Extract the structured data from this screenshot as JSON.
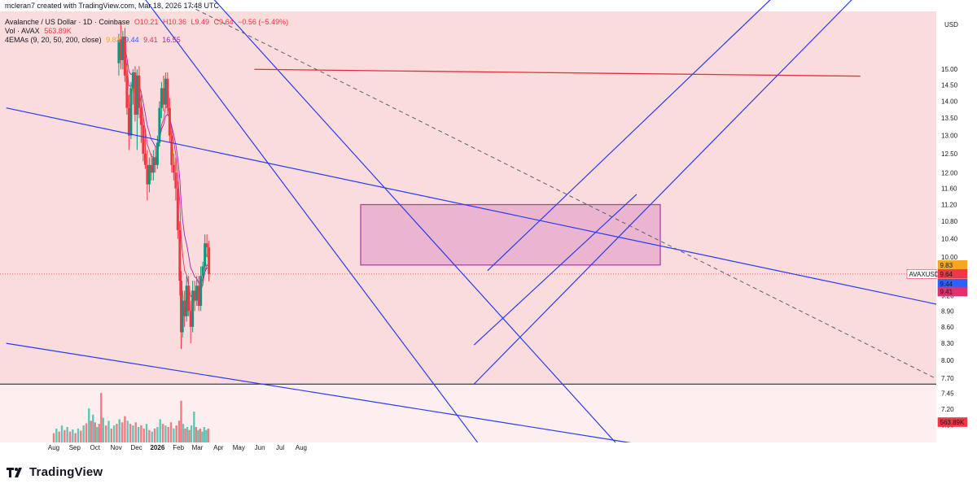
{
  "header": {
    "credit": "mcleran7 created with TradingView.com, Mar 18, 2026 17:48 UTC",
    "symbol_line": "Avalanche / US Dollar · 1D · Coinbase",
    "ohlc": {
      "o": "O10.21",
      "h": "H10.36",
      "l": "L9.49",
      "c": "C9.64",
      "chg": "−0.56 (−5.49%)"
    },
    "volume": {
      "label": "Vol · AVAX",
      "value": "563.89K"
    },
    "emas": {
      "label": "4EMAs (9, 20, 50, 200, close)",
      "v1": "9.83",
      "v2": "9.44",
      "v3": "9.41",
      "v4": "16.55"
    }
  },
  "branding": {
    "name": "TradingView"
  },
  "colors": {
    "background_tint": "#fadcdc",
    "up": "#089981",
    "down": "#f23645",
    "trendline": "#2a3bf0",
    "resistance": "#e0303a",
    "zone_fill": "#e6a8cc",
    "zone_border": "#b040a8",
    "ema9": "#f6a623",
    "ema20": "#2962ff",
    "ema50": "#e03070",
    "ema200": "#9c27b0"
  },
  "chart_data": {
    "type": "candlestick",
    "symbol": "AVAXUSD",
    "currency": "USD",
    "y_scale": "log",
    "ylim": [
      6.7,
      17.0
    ],
    "y_ticks": [
      "15.00",
      "14.50",
      "14.00",
      "13.50",
      "13.00",
      "12.50",
      "12.00",
      "11.60",
      "11.20",
      "10.80",
      "10.40",
      "10.00",
      "9.60",
      "9.20",
      "8.90",
      "8.60",
      "8.30",
      "8.00",
      "7.70",
      "7.45",
      "7.20",
      "6.96"
    ],
    "x_ticks": [
      "Aug",
      "Sep",
      "Oct",
      "Nov",
      "Dec",
      "2026",
      "Feb",
      "Mar",
      "Apr",
      "May",
      "Jun",
      "Jul",
      "Aug"
    ],
    "price_labels": [
      {
        "label": "9.83",
        "color": "#f6a623"
      },
      {
        "label": "AVAXUSD",
        "color": "#f23645"
      },
      {
        "label": "9.64",
        "color": "#f23645"
      },
      {
        "label": "9.44",
        "color": "#2962ff"
      },
      {
        "label": "9.41",
        "color": "#e03070"
      },
      {
        "label": "563.89K",
        "color": "#f23645"
      }
    ],
    "last_price": 9.64,
    "candles": [
      {
        "d": "2025-11-05",
        "o": 15.2,
        "h": 16.2,
        "l": 14.8,
        "c": 16.0
      },
      {
        "d": "2025-11-08",
        "o": 16.0,
        "h": 16.6,
        "l": 15.0,
        "c": 15.3
      },
      {
        "d": "2025-11-11",
        "o": 15.3,
        "h": 16.3,
        "l": 15.0,
        "c": 16.1
      },
      {
        "d": "2025-11-14",
        "o": 16.1,
        "h": 16.4,
        "l": 14.6,
        "c": 14.8
      },
      {
        "d": "2025-11-17",
        "o": 14.8,
        "h": 15.2,
        "l": 13.6,
        "c": 13.8
      },
      {
        "d": "2025-11-20",
        "o": 13.8,
        "h": 14.2,
        "l": 12.6,
        "c": 13.0
      },
      {
        "d": "2025-11-23",
        "o": 13.0,
        "h": 14.6,
        "l": 12.9,
        "c": 14.4
      },
      {
        "d": "2025-11-26",
        "o": 14.4,
        "h": 15.0,
        "l": 13.9,
        "c": 14.9
      },
      {
        "d": "2025-11-29",
        "o": 14.9,
        "h": 15.1,
        "l": 13.4,
        "c": 13.6
      },
      {
        "d": "2025-12-02",
        "o": 13.6,
        "h": 15.0,
        "l": 12.6,
        "c": 14.8
      },
      {
        "d": "2025-12-05",
        "o": 14.8,
        "h": 15.1,
        "l": 13.5,
        "c": 13.8
      },
      {
        "d": "2025-12-08",
        "o": 13.8,
        "h": 14.2,
        "l": 12.8,
        "c": 13.3
      },
      {
        "d": "2025-12-11",
        "o": 13.3,
        "h": 13.6,
        "l": 12.3,
        "c": 12.5
      },
      {
        "d": "2025-12-14",
        "o": 12.5,
        "h": 13.2,
        "l": 12.1,
        "c": 12.2
      },
      {
        "d": "2025-12-17",
        "o": 12.2,
        "h": 12.6,
        "l": 11.3,
        "c": 11.7
      },
      {
        "d": "2025-12-20",
        "o": 11.7,
        "h": 12.4,
        "l": 11.5,
        "c": 12.2
      },
      {
        "d": "2025-12-23",
        "o": 12.2,
        "h": 12.5,
        "l": 11.8,
        "c": 12.0
      },
      {
        "d": "2025-12-26",
        "o": 12.0,
        "h": 12.6,
        "l": 11.8,
        "c": 12.4
      },
      {
        "d": "2025-12-29",
        "o": 12.4,
        "h": 12.7,
        "l": 12.0,
        "c": 12.2
      },
      {
        "d": "2026-01-01",
        "o": 12.2,
        "h": 13.0,
        "l": 12.1,
        "c": 12.8
      },
      {
        "d": "2026-01-04",
        "o": 12.8,
        "h": 14.0,
        "l": 12.7,
        "c": 13.8
      },
      {
        "d": "2026-01-07",
        "o": 13.8,
        "h": 14.6,
        "l": 13.5,
        "c": 14.4
      },
      {
        "d": "2026-01-10",
        "o": 14.4,
        "h": 14.8,
        "l": 13.7,
        "c": 13.9
      },
      {
        "d": "2026-01-13",
        "o": 13.9,
        "h": 14.9,
        "l": 13.8,
        "c": 14.7
      },
      {
        "d": "2026-01-16",
        "o": 14.7,
        "h": 14.9,
        "l": 13.6,
        "c": 13.8
      },
      {
        "d": "2026-01-19",
        "o": 13.8,
        "h": 14.1,
        "l": 12.8,
        "c": 13.0
      },
      {
        "d": "2026-01-22",
        "o": 13.0,
        "h": 13.2,
        "l": 12.0,
        "c": 12.2
      },
      {
        "d": "2026-01-25",
        "o": 12.2,
        "h": 12.5,
        "l": 11.8,
        "c": 12.0
      },
      {
        "d": "2026-01-28",
        "o": 12.0,
        "h": 12.4,
        "l": 11.3,
        "c": 11.6
      },
      {
        "d": "2026-01-31",
        "o": 11.6,
        "h": 11.8,
        "l": 10.4,
        "c": 10.6
      },
      {
        "d": "2026-02-03",
        "o": 10.6,
        "h": 10.8,
        "l": 9.2,
        "c": 9.5
      },
      {
        "d": "2026-02-05",
        "o": 9.5,
        "h": 9.7,
        "l": 8.2,
        "c": 8.5
      },
      {
        "d": "2026-02-07",
        "o": 8.5,
        "h": 9.3,
        "l": 8.4,
        "c": 9.1
      },
      {
        "d": "2026-02-10",
        "o": 9.1,
        "h": 9.3,
        "l": 8.6,
        "c": 8.8
      },
      {
        "d": "2026-02-13",
        "o": 8.8,
        "h": 9.6,
        "l": 8.7,
        "c": 9.4
      },
      {
        "d": "2026-02-16",
        "o": 9.4,
        "h": 9.6,
        "l": 8.8,
        "c": 8.9
      },
      {
        "d": "2026-02-19",
        "o": 8.9,
        "h": 9.1,
        "l": 8.3,
        "c": 8.6
      },
      {
        "d": "2026-02-22",
        "o": 8.6,
        "h": 9.5,
        "l": 8.5,
        "c": 9.3
      },
      {
        "d": "2026-02-25",
        "o": 9.3,
        "h": 9.5,
        "l": 8.9,
        "c": 9.1
      },
      {
        "d": "2026-02-28",
        "o": 9.1,
        "h": 9.6,
        "l": 9.0,
        "c": 9.4
      },
      {
        "d": "2026-03-03",
        "o": 9.4,
        "h": 9.6,
        "l": 8.9,
        "c": 9.0
      },
      {
        "d": "2026-03-06",
        "o": 9.0,
        "h": 9.8,
        "l": 8.9,
        "c": 9.6
      },
      {
        "d": "2026-03-09",
        "o": 9.6,
        "h": 9.9,
        "l": 9.4,
        "c": 9.8
      },
      {
        "d": "2026-03-12",
        "o": 9.8,
        "h": 10.5,
        "l": 9.7,
        "c": 10.3
      },
      {
        "d": "2026-03-15",
        "o": 10.3,
        "h": 10.5,
        "l": 10.0,
        "c": 10.21
      },
      {
        "d": "2026-03-18",
        "o": 10.21,
        "h": 10.36,
        "l": 9.49,
        "c": 9.64
      }
    ],
    "volume": [
      {
        "d": "2025-08-01",
        "v": 0.3,
        "up": false
      },
      {
        "d": "2025-08-05",
        "v": 0.45,
        "up": true
      },
      {
        "d": "2025-08-09",
        "v": 0.35,
        "up": false
      },
      {
        "d": "2025-08-13",
        "v": 0.55,
        "up": true
      },
      {
        "d": "2025-08-17",
        "v": 0.4,
        "up": false
      },
      {
        "d": "2025-08-21",
        "v": 0.5,
        "up": true
      },
      {
        "d": "2025-08-25",
        "v": 0.35,
        "up": false
      },
      {
        "d": "2025-08-29",
        "v": 0.42,
        "up": true
      },
      {
        "d": "2025-09-02",
        "v": 0.3,
        "up": false
      },
      {
        "d": "2025-09-06",
        "v": 0.45,
        "up": true
      },
      {
        "d": "2025-09-10",
        "v": 0.38,
        "up": false
      },
      {
        "d": "2025-09-14",
        "v": 0.55,
        "up": true
      },
      {
        "d": "2025-09-18",
        "v": 0.62,
        "up": false
      },
      {
        "d": "2025-09-22",
        "v": 1.1,
        "up": true
      },
      {
        "d": "2025-09-25",
        "v": 0.7,
        "up": false
      },
      {
        "d": "2025-09-28",
        "v": 0.9,
        "up": true
      },
      {
        "d": "2025-10-01",
        "v": 0.65,
        "up": false
      },
      {
        "d": "2025-10-04",
        "v": 0.5,
        "up": true
      },
      {
        "d": "2025-10-07",
        "v": 0.6,
        "up": false
      },
      {
        "d": "2025-10-10",
        "v": 1.6,
        "up": false
      },
      {
        "d": "2025-10-13",
        "v": 0.8,
        "up": true
      },
      {
        "d": "2025-10-17",
        "v": 0.55,
        "up": false
      },
      {
        "d": "2025-10-21",
        "v": 0.7,
        "up": true
      },
      {
        "d": "2025-10-25",
        "v": 0.45,
        "up": false
      },
      {
        "d": "2025-10-29",
        "v": 0.55,
        "up": true
      },
      {
        "d": "2025-11-02",
        "v": 0.6,
        "up": false
      },
      {
        "d": "2025-11-06",
        "v": 0.75,
        "up": true
      },
      {
        "d": "2025-11-10",
        "v": 0.65,
        "up": false
      },
      {
        "d": "2025-11-14",
        "v": 0.85,
        "up": false
      },
      {
        "d": "2025-11-18",
        "v": 0.7,
        "up": true
      },
      {
        "d": "2025-11-22",
        "v": 0.6,
        "up": false
      },
      {
        "d": "2025-11-26",
        "v": 0.55,
        "up": true
      },
      {
        "d": "2025-11-30",
        "v": 0.65,
        "up": false
      },
      {
        "d": "2025-12-04",
        "v": 0.5,
        "up": true
      },
      {
        "d": "2025-12-08",
        "v": 0.55,
        "up": false
      },
      {
        "d": "2025-12-12",
        "v": 0.45,
        "up": false
      },
      {
        "d": "2025-12-16",
        "v": 0.6,
        "up": true
      },
      {
        "d": "2025-12-20",
        "v": 0.4,
        "up": false
      },
      {
        "d": "2025-12-24",
        "v": 0.35,
        "up": true
      },
      {
        "d": "2025-12-28",
        "v": 0.45,
        "up": false
      },
      {
        "d": "2026-01-01",
        "v": 0.5,
        "up": true
      },
      {
        "d": "2026-01-05",
        "v": 0.75,
        "up": true
      },
      {
        "d": "2026-01-09",
        "v": 0.6,
        "up": false
      },
      {
        "d": "2026-01-13",
        "v": 0.55,
        "up": true
      },
      {
        "d": "2026-01-17",
        "v": 0.5,
        "up": false
      },
      {
        "d": "2026-01-21",
        "v": 0.65,
        "up": false
      },
      {
        "d": "2026-01-25",
        "v": 0.45,
        "up": true
      },
      {
        "d": "2026-01-29",
        "v": 0.55,
        "up": false
      },
      {
        "d": "2026-02-02",
        "v": 0.7,
        "up": false
      },
      {
        "d": "2026-02-05",
        "v": 1.35,
        "up": false
      },
      {
        "d": "2026-02-08",
        "v": 0.6,
        "up": true
      },
      {
        "d": "2026-02-11",
        "v": 0.45,
        "up": false
      },
      {
        "d": "2026-02-14",
        "v": 0.5,
        "up": true
      },
      {
        "d": "2026-02-17",
        "v": 0.4,
        "up": false
      },
      {
        "d": "2026-02-20",
        "v": 0.55,
        "up": true
      },
      {
        "d": "2026-02-24",
        "v": 1.0,
        "up": true
      },
      {
        "d": "2026-02-27",
        "v": 0.5,
        "up": false
      },
      {
        "d": "2026-03-02",
        "v": 0.4,
        "up": true
      },
      {
        "d": "2026-03-05",
        "v": 0.45,
        "up": false
      },
      {
        "d": "2026-03-08",
        "v": 0.35,
        "up": true
      },
      {
        "d": "2026-03-11",
        "v": 0.5,
        "up": true
      },
      {
        "d": "2026-03-14",
        "v": 0.4,
        "up": true
      },
      {
        "d": "2026-03-17",
        "v": 0.45,
        "up": false
      }
    ]
  }
}
